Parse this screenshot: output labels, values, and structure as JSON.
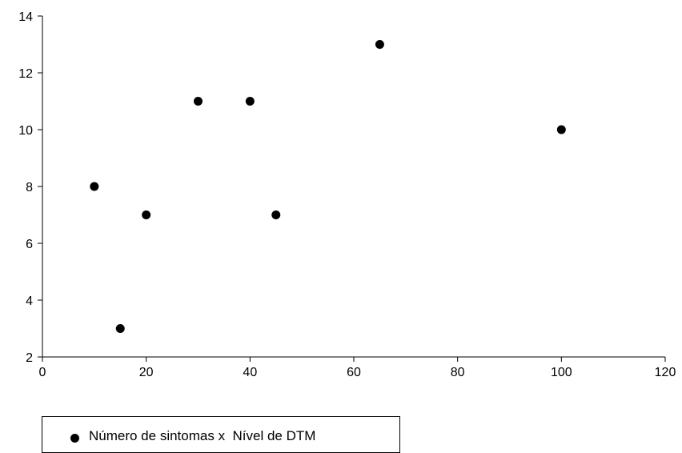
{
  "chart_data": {
    "type": "scatter",
    "title": "",
    "xlabel": "",
    "ylabel": "",
    "xlim": [
      0,
      120
    ],
    "ylim": [
      2,
      14
    ],
    "x_ticks": [
      0,
      20,
      40,
      60,
      80,
      100,
      120
    ],
    "y_ticks": [
      2,
      4,
      6,
      8,
      10,
      12,
      14
    ],
    "grid": false,
    "legend_position": "bottom-left",
    "series": [
      {
        "name": "Número de sintomas x  Nível de DTM",
        "color": "#000000",
        "marker": "circle",
        "points": [
          {
            "x": 10,
            "y": 8
          },
          {
            "x": 15,
            "y": 3
          },
          {
            "x": 20,
            "y": 7
          },
          {
            "x": 30,
            "y": 11
          },
          {
            "x": 40,
            "y": 11
          },
          {
            "x": 45,
            "y": 7
          },
          {
            "x": 65,
            "y": 13
          },
          {
            "x": 100,
            "y": 10
          }
        ]
      }
    ]
  }
}
